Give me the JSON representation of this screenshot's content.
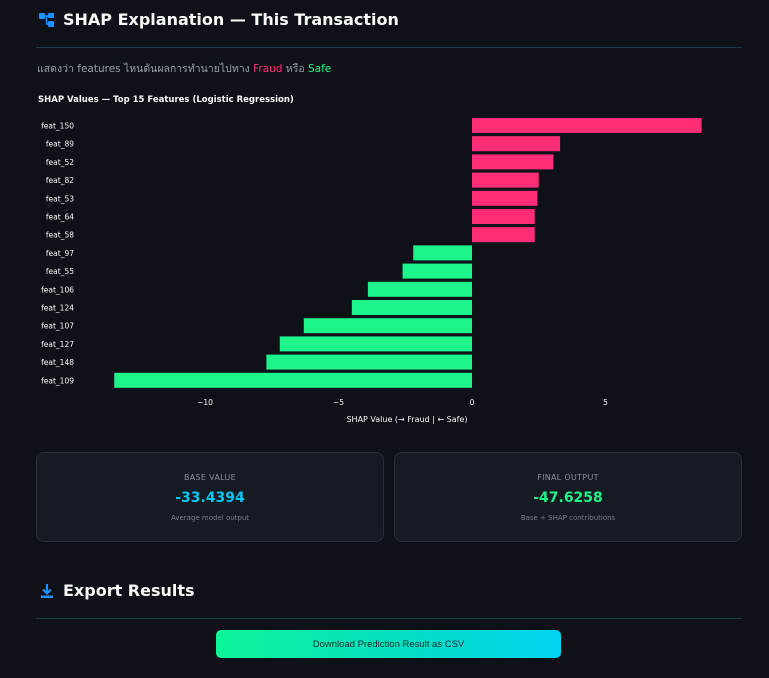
{
  "shap_section": {
    "title": "SHAP Explanation — This Transaction",
    "subtitle_prefix": "แสดงว่า features ไหนดันผลการทำนายไปทาง ",
    "subtitle_fraud": "Fraud",
    "subtitle_mid": " หรือ ",
    "subtitle_safe": "Safe"
  },
  "chart_data": {
    "type": "bar",
    "orientation": "horizontal",
    "title": "SHAP Values — Top 15 Features (Logistic Regression)",
    "xlabel": "SHAP Value (→ Fraud | ← Safe)",
    "ylabel": "",
    "xlim": [
      -14,
      9
    ],
    "xticks": [
      -10,
      -5,
      0,
      5
    ],
    "xtick_labels": [
      "−10",
      "−5",
      "0",
      "5"
    ],
    "grid": false,
    "categories": [
      "feat_150",
      "feat_89",
      "feat_52",
      "feat_82",
      "feat_53",
      "feat_64",
      "feat_58",
      "feat_97",
      "feat_55",
      "feat_106",
      "feat_124",
      "feat_107",
      "feat_127",
      "feat_148",
      "feat_109"
    ],
    "values": [
      8.6,
      3.3,
      3.05,
      2.5,
      2.45,
      2.35,
      2.35,
      -2.2,
      -2.6,
      -3.9,
      -4.5,
      -6.3,
      -7.2,
      -7.7,
      -13.4
    ],
    "colors": {
      "positive": "#ff2d78",
      "negative": "#1df58a"
    }
  },
  "metrics": {
    "base": {
      "label": "BASE VALUE",
      "value": "-33.4394",
      "caption": "Average model output",
      "color": "#00c8f0"
    },
    "final": {
      "label": "FINAL OUTPUT",
      "value": "-47.6258",
      "caption": "Base + SHAP contributions",
      "color": "#1df58a"
    }
  },
  "export_section": {
    "title": "Export Results",
    "button_label": "Download Prediction Result as CSV"
  },
  "icons": {
    "shap": "network-icon",
    "export": "download-icon"
  }
}
